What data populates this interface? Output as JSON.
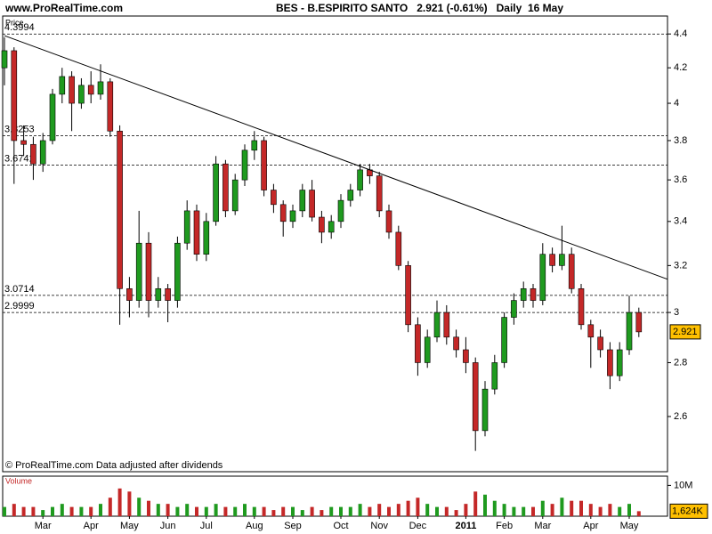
{
  "header": "www.ProRealTime.com",
  "chart_data": {
    "type": "candlestick",
    "title": "BES - B.ESPIRITO SANTO   2.921 (-0.61%)   Daily  16 May",
    "price_label": "Price",
    "volume_label": "Volume",
    "footnote": "© ProRealTime.com  Data adjusted after dividends",
    "log_scale": true,
    "ylim": [
      2.41,
      4.51
    ],
    "yticks": [
      2.6,
      2.8,
      3,
      3.2,
      3.4,
      3.6,
      3.8,
      4,
      4.2,
      4.4
    ],
    "levels": [
      4.3994,
      3.8253,
      3.6741,
      3.0714,
      2.9999
    ],
    "up_color": "#1f9a1f",
    "down_color": "#c42828",
    "categories": [
      null,
      null,
      null,
      null,
      "Mar",
      null,
      null,
      null,
      null,
      "Apr",
      null,
      null,
      null,
      "May",
      null,
      null,
      null,
      "Jun",
      null,
      null,
      null,
      "Jul",
      null,
      null,
      null,
      null,
      "Aug",
      null,
      null,
      null,
      "Sep",
      null,
      null,
      null,
      null,
      "Oct",
      null,
      null,
      null,
      "Nov",
      null,
      null,
      null,
      "Dec",
      null,
      null,
      null,
      null,
      "2011",
      null,
      null,
      null,
      "Feb",
      null,
      null,
      null,
      "Mar",
      null,
      null,
      null,
      null,
      "Apr",
      null,
      null,
      null,
      "May",
      null
    ],
    "open": [
      4.2,
      4.3,
      3.8,
      3.78,
      3.68,
      3.8,
      4.05,
      4.15,
      4.0,
      4.1,
      4.05,
      4.12,
      3.85,
      3.1,
      3.05,
      3.3,
      3.05,
      3.1,
      3.05,
      3.3,
      3.45,
      3.25,
      3.4,
      3.68,
      3.45,
      3.6,
      3.75,
      3.8,
      3.55,
      3.48,
      3.4,
      3.45,
      3.55,
      3.42,
      3.35,
      3.4,
      3.5,
      3.55,
      3.65,
      3.62,
      3.45,
      3.35,
      3.2,
      2.95,
      2.8,
      2.9,
      3.0,
      2.9,
      2.85,
      2.8,
      2.55,
      2.7,
      2.8,
      2.98,
      3.05,
      3.1,
      3.05,
      3.25,
      3.2,
      3.25,
      3.1,
      2.95,
      2.9,
      2.85,
      2.75,
      2.85,
      3.0
    ],
    "high": [
      4.38,
      4.32,
      3.88,
      3.82,
      3.84,
      4.08,
      4.2,
      4.18,
      4.14,
      4.18,
      4.22,
      4.14,
      3.88,
      3.15,
      3.45,
      3.35,
      3.15,
      3.12,
      3.33,
      3.5,
      3.48,
      3.44,
      3.72,
      3.7,
      3.63,
      3.78,
      3.85,
      3.82,
      3.58,
      3.5,
      3.48,
      3.58,
      3.6,
      3.45,
      3.43,
      3.53,
      3.58,
      3.68,
      3.68,
      3.64,
      3.48,
      3.38,
      3.22,
      2.98,
      2.93,
      3.05,
      3.03,
      2.93,
      2.9,
      2.82,
      2.73,
      2.83,
      3.0,
      3.08,
      3.13,
      3.12,
      3.3,
      3.28,
      3.38,
      3.28,
      3.12,
      2.97,
      2.93,
      2.88,
      2.88,
      3.07,
      3.02
    ],
    "low": [
      4.1,
      3.58,
      3.72,
      3.6,
      3.64,
      3.78,
      4.0,
      3.85,
      3.97,
      4.0,
      4.02,
      3.82,
      2.95,
      2.98,
      3.02,
      2.98,
      3.02,
      2.96,
      3.02,
      3.27,
      3.22,
      3.22,
      3.38,
      3.42,
      3.43,
      3.57,
      3.7,
      3.52,
      3.44,
      3.33,
      3.37,
      3.42,
      3.4,
      3.3,
      3.32,
      3.37,
      3.47,
      3.52,
      3.58,
      3.42,
      3.32,
      3.18,
      2.92,
      2.75,
      2.78,
      2.88,
      2.87,
      2.82,
      2.76,
      2.48,
      2.53,
      2.68,
      2.78,
      2.95,
      3.02,
      3.02,
      3.03,
      3.17,
      3.18,
      3.08,
      2.93,
      2.78,
      2.82,
      2.7,
      2.73,
      2.83,
      2.9
    ],
    "close": [
      4.3,
      3.8,
      3.78,
      3.68,
      3.8,
      4.05,
      4.15,
      4.0,
      4.1,
      4.05,
      4.12,
      3.85,
      3.1,
      3.05,
      3.3,
      3.05,
      3.1,
      3.05,
      3.3,
      3.45,
      3.25,
      3.4,
      3.68,
      3.45,
      3.6,
      3.75,
      3.8,
      3.55,
      3.48,
      3.4,
      3.45,
      3.55,
      3.42,
      3.35,
      3.4,
      3.5,
      3.55,
      3.65,
      3.62,
      3.45,
      3.35,
      3.2,
      2.95,
      2.8,
      2.9,
      3.0,
      2.9,
      2.85,
      2.8,
      2.55,
      2.7,
      2.8,
      2.98,
      3.05,
      3.1,
      3.05,
      3.25,
      3.2,
      3.25,
      3.1,
      2.95,
      2.9,
      2.85,
      2.75,
      2.85,
      3.0,
      2.921
    ],
    "volume": [
      3,
      4,
      3,
      3,
      2,
      3,
      4,
      3,
      3,
      3,
      4,
      6,
      9,
      8,
      6,
      5,
      4,
      4,
      3,
      4,
      3,
      3,
      4,
      3,
      3,
      4,
      3,
      3,
      2,
      3,
      3,
      2,
      3,
      2,
      3,
      3,
      3,
      4,
      3,
      4,
      3,
      4,
      5,
      6,
      4,
      3,
      3,
      2,
      4,
      8,
      7,
      5,
      4,
      3,
      3,
      3,
      5,
      4,
      6,
      5,
      5,
      4,
      3,
      4,
      3,
      4,
      1.624
    ],
    "volume_ylim": [
      0,
      13
    ],
    "volume_yticks": [
      {
        "value": 10,
        "label": "10M"
      }
    ],
    "volume_last": {
      "value": 1.624,
      "label": "1,624K"
    },
    "trendline": {
      "x": [
        0,
        69
      ],
      "values": [
        4.39,
        3.14
      ],
      "color": "#000000"
    }
  }
}
